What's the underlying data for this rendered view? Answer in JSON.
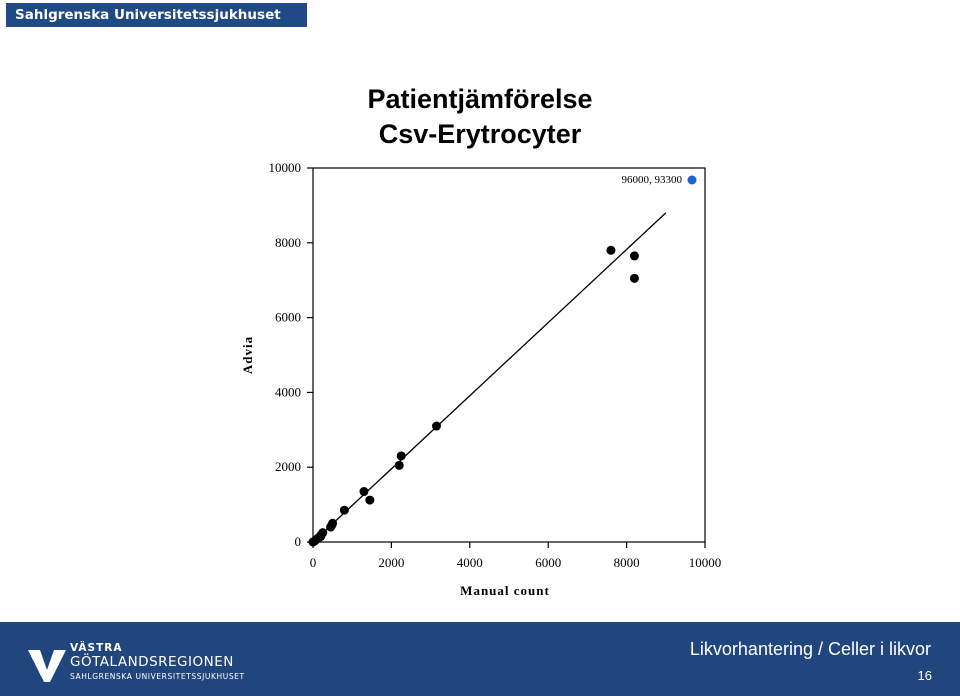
{
  "header": {
    "org_name": "Sahlgrenska Universitetssjukhuset"
  },
  "slide": {
    "title_line1": "Patientjämförelse",
    "title_line2": "Csv-Erytrocyter"
  },
  "chart_data": {
    "type": "scatter",
    "xlabel": "Manual count",
    "ylabel": "Advia",
    "xlim": [
      0,
      10000
    ],
    "ylim": [
      0,
      10000
    ],
    "x_ticks": [
      0,
      2000,
      4000,
      6000,
      8000,
      10000
    ],
    "y_ticks": [
      0,
      2000,
      4000,
      6000,
      8000,
      10000
    ],
    "series": [
      {
        "points": [
          [
            0,
            0
          ],
          [
            50,
            30
          ],
          [
            100,
            80
          ],
          [
            150,
            120
          ],
          [
            200,
            150
          ],
          [
            250,
            250
          ],
          [
            200,
            180
          ],
          [
            450,
            400
          ],
          [
            500,
            500
          ],
          [
            480,
            450
          ],
          [
            800,
            850
          ],
          [
            1300,
            1350
          ],
          [
            1450,
            1120
          ],
          [
            2200,
            2050
          ],
          [
            2250,
            2300
          ],
          [
            3150,
            3100
          ],
          [
            7600,
            7800
          ],
          [
            8200,
            7650
          ],
          [
            8200,
            7050
          ]
        ],
        "color": "#000000"
      }
    ],
    "reference_line": {
      "from": [
        0,
        0
      ],
      "to": [
        9000,
        8800
      ]
    },
    "outlier": {
      "label": "96000, 93300",
      "color": "#1a62d6"
    }
  },
  "footer": {
    "logo_line1": "VÄSTRA",
    "logo_line2": "GÖTALANDSREGIONEN",
    "logo_line3": "SAHLGRENSKA UNIVERSITETSSJUKHUSET",
    "title": "Likvorhantering / Celler i likvor",
    "page_number": "16"
  }
}
